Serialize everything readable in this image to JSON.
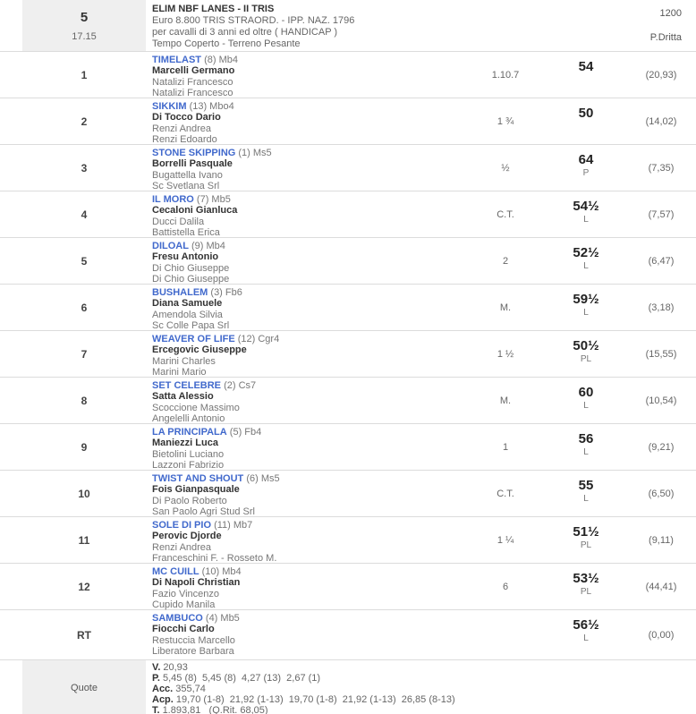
{
  "colors": {
    "horse_link": "#4169cc",
    "panel_gray": "#efefef",
    "row_border": "#dcdcdc"
  },
  "header": {
    "race_number": "5",
    "race_time": "17.15",
    "title": "ELIM NBF LANES - II TRIS",
    "subtitle1": "Euro 8.800 TRIS STRAORD. - IPP. NAZ. 1796",
    "subtitle2": "per cavalli di 3 anni ed oltre ( HANDICAP )",
    "subtitle3": "Tempo Coperto - Terreno Pesante",
    "distance": "1200",
    "track": "P.Dritta"
  },
  "rows": [
    {
      "pos": "1",
      "name": "TIMELAST",
      "suffix": "(8) Mb4",
      "driver": "Marcelli Germano",
      "trainer": "Natalizi Francesco",
      "owner": "Natalizi Francesco",
      "gap": "1.10.7",
      "weight": "54",
      "weight_note": "",
      "odds": "(20,93)"
    },
    {
      "pos": "2",
      "name": "SIKKIM",
      "suffix": "(13) Mbo4",
      "driver": "Di Tocco Dario",
      "trainer": "Renzi Andrea",
      "owner": "Renzi Edoardo",
      "gap": "1 ¾",
      "weight": "50",
      "weight_note": "",
      "odds": "(14,02)"
    },
    {
      "pos": "3",
      "name": "STONE SKIPPING",
      "suffix": "(1) Ms5",
      "driver": "Borrelli Pasquale",
      "trainer": "Bugattella Ivano",
      "owner": "Sc Svetlana Srl",
      "gap": "½",
      "weight": "64",
      "weight_note": "P",
      "odds": "(7,35)"
    },
    {
      "pos": "4",
      "name": "IL MORO",
      "suffix": "(7) Mb5",
      "driver": "Cecaloni Gianluca",
      "trainer": "Ducci Dalila",
      "owner": "Battistella Erica",
      "gap": "C.T.",
      "weight": "54½",
      "weight_note": "L",
      "odds": "(7,57)"
    },
    {
      "pos": "5",
      "name": "DILOAL",
      "suffix": "(9) Mb4",
      "driver": "Fresu Antonio",
      "trainer": "Di Chio Giuseppe",
      "owner": "Di Chio Giuseppe",
      "gap": "2",
      "weight": "52½",
      "weight_note": "L",
      "odds": "(6,47)"
    },
    {
      "pos": "6",
      "name": "BUSHALEM",
      "suffix": "(3) Fb6",
      "driver": "Diana Samuele",
      "trainer": "Amendola Silvia",
      "owner": "Sc Colle Papa Srl",
      "gap": "M.",
      "weight": "59½",
      "weight_note": "L",
      "odds": "(3,18)"
    },
    {
      "pos": "7",
      "name": "WEAVER OF LIFE",
      "suffix": "(12) Cgr4",
      "driver": "Ercegovic Giuseppe",
      "trainer": "Marini Charles",
      "owner": "Marini Mario",
      "gap": "1 ½",
      "weight": "50½",
      "weight_note": "PL",
      "odds": "(15,55)"
    },
    {
      "pos": "8",
      "name": "SET CELEBRE",
      "suffix": "(2) Cs7",
      "driver": "Satta Alessio",
      "trainer": "Scoccione Massimo",
      "owner": "Angelelli Antonio",
      "gap": "M.",
      "weight": "60",
      "weight_note": "L",
      "odds": "(10,54)"
    },
    {
      "pos": "9",
      "name": "LA PRINCIPALA",
      "suffix": "(5) Fb4",
      "driver": "Maniezzi Luca",
      "trainer": "Bietolini Luciano",
      "owner": "Lazzoni Fabrizio",
      "gap": "1",
      "weight": "56",
      "weight_note": "L",
      "odds": "(9,21)"
    },
    {
      "pos": "10",
      "name": "TWIST AND SHOUT",
      "suffix": "(6) Ms5",
      "driver": "Fois Gianpasquale",
      "trainer": "Di Paolo Roberto",
      "owner": "San Paolo Agri Stud Srl",
      "gap": "C.T.",
      "weight": "55",
      "weight_note": "L",
      "odds": "(6,50)"
    },
    {
      "pos": "11",
      "name": "SOLE DI PIO",
      "suffix": "(11) Mb7",
      "driver": "Perovic Djorde",
      "trainer": "Renzi Andrea",
      "owner": "Franceschini F. - Rosseto M.",
      "gap": "1 ¼",
      "weight": "51½",
      "weight_note": "PL",
      "odds": "(9,11)"
    },
    {
      "pos": "12",
      "name": "MC CUILL",
      "suffix": "(10) Mb4",
      "driver": "Di Napoli Christian",
      "trainer": "Fazio Vincenzo",
      "owner": "Cupido Manila",
      "gap": "6",
      "weight": "53½",
      "weight_note": "PL",
      "odds": "(44,41)"
    },
    {
      "pos": "RT",
      "name": "SAMBUCO",
      "suffix": "(4) Mb5",
      "driver": "Fiocchi Carlo",
      "trainer": "Restuccia Marcello",
      "owner": "Liberatore Barbara",
      "gap": "",
      "weight": "56½",
      "weight_note": "L",
      "odds": "(0,00)"
    }
  ],
  "quote": {
    "label": "Quote",
    "lines": [
      {
        "label": "V.",
        "text": "20,93"
      },
      {
        "label": "P.",
        "text": "5,45 (8)  5,45 (8)  4,27 (13)  2,67 (1)"
      },
      {
        "label": "Acc.",
        "text": "355,74"
      },
      {
        "label": "Acp.",
        "text": "19,70 (1-8)  21,92 (1-13)  19,70 (1-8)  21,92 (1-13)  26,85 (8-13)"
      },
      {
        "label": "T.",
        "text": "1.893,81   (Q.Rit. 68,05)"
      }
    ]
  }
}
